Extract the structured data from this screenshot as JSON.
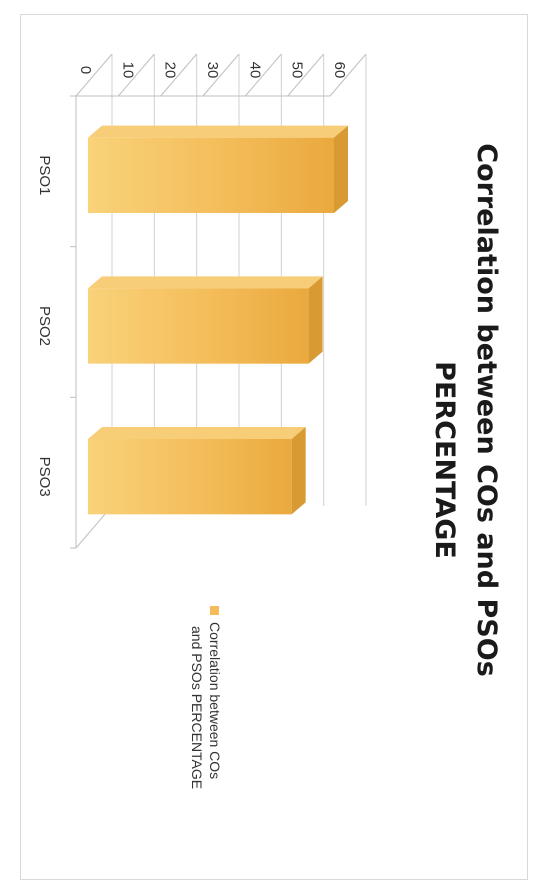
{
  "chart_data": {
    "type": "bar",
    "orientation": "rotated-90-clockwise",
    "three_d": true,
    "title": "Correlation between COs and PSOs PERCENTAGE",
    "title_lines": [
      "Correlation between COs and PSOs",
      "PERCENTAGE"
    ],
    "categories": [
      "PSO1",
      "PSO2",
      "PSO3"
    ],
    "series": [
      {
        "name": "Correlation between COs and PSOs  PERCENTAGE",
        "legend_lines": [
          "Correlation between COs",
          "and PSOs  PERCENTAGE"
        ],
        "values": [
          60,
          54,
          50
        ],
        "color": "#f4bd5a"
      }
    ],
    "ylim": [
      0,
      60
    ],
    "yticks": [
      0,
      10,
      20,
      30,
      40,
      50,
      60
    ],
    "ytick_labels": [
      "0",
      "10",
      "20",
      "30",
      "40",
      "50",
      "60"
    ],
    "grid": true,
    "legend_position": "right"
  }
}
